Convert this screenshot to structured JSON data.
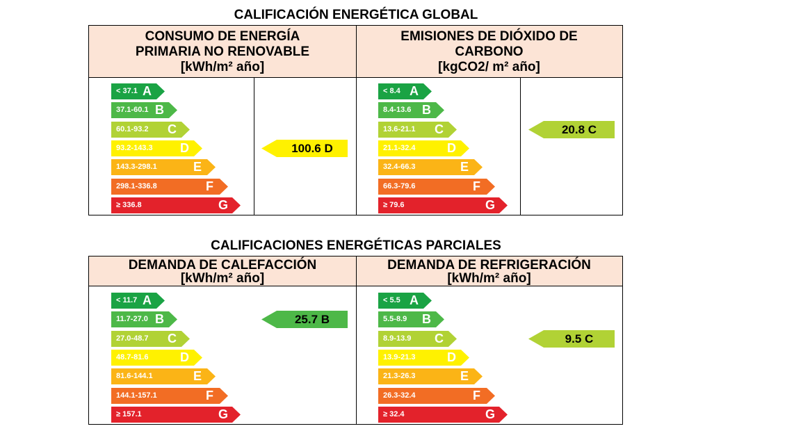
{
  "colors": {
    "A": "#1aa344",
    "B": "#4db848",
    "C": "#b1d235",
    "D": "#fff100",
    "E": "#fbb416",
    "F": "#f26d24",
    "G": "#e3222b",
    "header_bg": "#fce4d6"
  },
  "global": {
    "title": "CALIFICACIÓN ENERGÉTICA GLOBAL",
    "consumo": {
      "header": [
        "CONSUMO DE ENERGÍA",
        "PRIMARIA NO RENOVABLE",
        "[kWh/m² año]"
      ],
      "scale": [
        "< 37.1",
        "37.1-60.1",
        "60.1-93.2",
        "93.2-143.3",
        "143.3-298.1",
        "298.1-336.8",
        "≥ 336.8"
      ],
      "rating": "100.6 D"
    },
    "emisiones": {
      "header": [
        "EMISIONES DE DIÓXIDO DE",
        "CARBONO",
        "[kgCO2/ m² año]"
      ],
      "scale": [
        "< 8.4",
        "8.4-13.6",
        "13.6-21.1",
        "21.1-32.4",
        "32.4-66.3",
        "66.3-79.6",
        "≥ 79.6"
      ],
      "rating": "20.8 C"
    }
  },
  "parciales": {
    "title": "CALIFICACIONES ENERGÉTICAS PARCIALES",
    "calefaccion": {
      "header": [
        "DEMANDA DE CALEFACCIÓN",
        "[kWh/m² año]"
      ],
      "scale": [
        "< 11.7",
        "11.7-27.0",
        "27.0-48.7",
        "48.7-81.6",
        "81.6-144.1",
        "144.1-157.1",
        "≥ 157.1"
      ],
      "rating": "25.7 B"
    },
    "refrigeracion": {
      "header": [
        "DEMANDA DE REFRIGERACIÓN",
        "[kWh/m² año]"
      ],
      "scale": [
        "< 5.5",
        "5.5-8.9",
        "8.9-13.9",
        "13.9-21.3",
        "21.3-26.3",
        "26.3-32.4",
        "≥ 32.4"
      ],
      "rating": "9.5 C"
    }
  },
  "letters": [
    "A",
    "B",
    "C",
    "D",
    "E",
    "F",
    "G"
  ]
}
